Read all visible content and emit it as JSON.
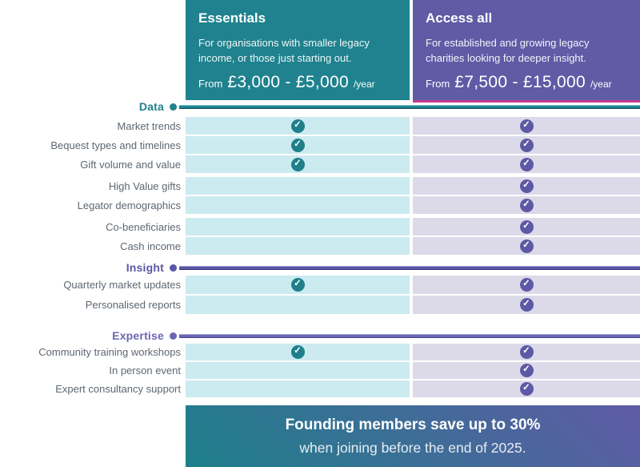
{
  "plans": [
    {
      "name": "Essentials",
      "description": "For organisations with smaller legacy income, or those just starting out.",
      "price_from": "From",
      "price_range": "£3,000 - £5,000",
      "price_period": "/year",
      "accent": "#1F828E",
      "cell_bg": "#CBEBF0",
      "check_color": "#1F7F8B"
    },
    {
      "name": "Access all",
      "description": "For established and growing legacy charities looking for deeper insight.",
      "price_from": "From",
      "price_range": "£7,500 - £15,000",
      "price_period": "/year",
      "accent": "#5F5BA5",
      "cell_bg": "#DCDAE9",
      "check_color": "#5E59A4",
      "header_underline": "#C23A8C"
    }
  ],
  "sections": [
    {
      "label": "Data",
      "color": "#1F828E",
      "line_light": "#7EC6CF",
      "line_dark": "#0C515D",
      "groups": [
        [
          {
            "feature": "Market trends",
            "essentials": true,
            "access_all": true
          },
          {
            "feature": "Bequest types and timelines",
            "essentials": true,
            "access_all": true
          },
          {
            "feature": "Gift volume and value",
            "essentials": true,
            "access_all": true
          }
        ],
        [
          {
            "feature": "High Value gifts",
            "essentials": false,
            "access_all": true
          },
          {
            "feature": "Legator demographics",
            "essentials": false,
            "access_all": true
          }
        ],
        [
          {
            "feature": "Co-beneficiaries",
            "essentials": false,
            "access_all": true
          },
          {
            "feature": "Cash income",
            "essentials": false,
            "access_all": true
          }
        ]
      ]
    },
    {
      "label": "Insight",
      "color": "#5B57A8",
      "line_light": "#9B98D0",
      "line_dark": "#38347D",
      "groups": [
        [
          {
            "feature": "Quarterly market updates",
            "essentials": true,
            "access_all": true
          },
          {
            "feature": "Personalised reports",
            "essentials": false,
            "access_all": true
          }
        ]
      ]
    },
    {
      "label": "Expertise",
      "color": "#6B67B2",
      "line_light": "#A5A2D6",
      "line_dark": "#45418A",
      "groups": [
        [
          {
            "feature": "Community training workshops",
            "essentials": true,
            "access_all": true
          },
          {
            "feature": "In person event",
            "essentials": false,
            "access_all": true
          },
          {
            "feature": "Expert consultancy support",
            "essentials": false,
            "access_all": true
          }
        ]
      ]
    }
  ],
  "banner": {
    "title": "Founding members save up to 30%",
    "subtitle": "when joining before the end of 2025.",
    "gradient_start": "#1D7F8A",
    "gradient_end": "#5F5BA5"
  },
  "check_icon": "✓"
}
